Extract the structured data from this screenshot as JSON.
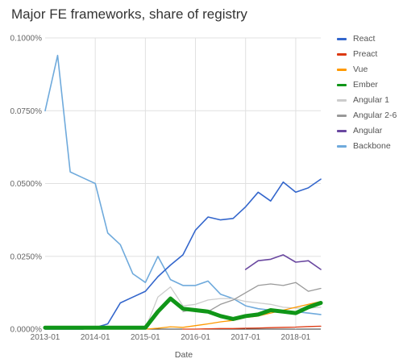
{
  "chart_data": {
    "type": "line",
    "title": "Major FE frameworks, share of registry",
    "xlabel": "Date",
    "ylabel": "",
    "x": [
      2013.0,
      2013.25,
      2013.5,
      2013.75,
      2014.0,
      2014.25,
      2014.5,
      2014.75,
      2015.0,
      2015.25,
      2015.5,
      2015.75,
      2016.0,
      2016.25,
      2016.5,
      2016.75,
      2017.0,
      2017.25,
      2017.5,
      2017.75,
      2018.0,
      2018.25,
      2018.5
    ],
    "xlim": [
      2013.0,
      2018.5
    ],
    "ylim": [
      0,
      0.1
    ],
    "y_tick_values": [
      0,
      0.025,
      0.05,
      0.075,
      0.1
    ],
    "y_tick_labels": [
      "0.0000%",
      "0.0250%",
      "0.0500%",
      "0.0750%",
      "0.1000%"
    ],
    "x_tick_values": [
      2013.0,
      2014.0,
      2015.0,
      2016.0,
      2017.0,
      2018.0
    ],
    "x_tick_labels": [
      "2013-01",
      "2014-01",
      "2015-01",
      "2016-01",
      "2017-01",
      "2018-01"
    ],
    "grid": true,
    "legend_position": "right",
    "series": [
      {
        "name": "React",
        "color": "#3366cc",
        "width": 1.6,
        "values": [
          0,
          0,
          0,
          0,
          0.0005,
          0.0018,
          0.009,
          0.011,
          0.013,
          0.018,
          0.022,
          0.0255,
          0.034,
          0.0385,
          0.0375,
          0.038,
          0.042,
          0.047,
          0.044,
          0.0505,
          0.047,
          0.0485,
          0.0515
        ]
      },
      {
        "name": "Preact",
        "color": "#dc3912",
        "width": 1.3,
        "values": [
          null,
          null,
          null,
          null,
          null,
          null,
          null,
          null,
          null,
          null,
          null,
          0,
          0,
          0.0001,
          0.0002,
          0.0002,
          0.0003,
          0.0004,
          0.0005,
          0.0006,
          0.0007,
          0.0009,
          0.001
        ]
      },
      {
        "name": "Vue",
        "color": "#ff9900",
        "width": 1.3,
        "values": [
          null,
          null,
          null,
          null,
          null,
          null,
          null,
          null,
          0,
          0.0003,
          0.0008,
          0.0006,
          0.0012,
          0.0018,
          0.0025,
          0.003,
          0.004,
          0.0045,
          0.0055,
          0.0065,
          0.0075,
          0.0085,
          0.0095
        ]
      },
      {
        "name": "Ember",
        "color": "#109618",
        "width": 5,
        "values": [
          0.0005,
          0.0005,
          0.0005,
          0.0005,
          0.0005,
          0.0005,
          0.0005,
          0.0005,
          0.0005,
          0.006,
          0.0105,
          0.007,
          0.0065,
          0.006,
          0.0045,
          0.0035,
          0.0045,
          0.005,
          0.0065,
          0.006,
          0.0055,
          0.0075,
          0.009
        ]
      },
      {
        "name": "Angular 1",
        "color": "#cccccc",
        "width": 1.3,
        "values": [
          0.0002,
          0.0002,
          0.0002,
          0.0002,
          0.0002,
          0.0002,
          0.0002,
          0.0002,
          0.0002,
          0.011,
          0.0145,
          0.008,
          0.0085,
          0.01,
          0.0105,
          0.0105,
          0.0095,
          0.009,
          0.0085,
          0.0075,
          0.0072,
          0.0072,
          0.0075
        ]
      },
      {
        "name": "Angular 2-6",
        "color": "#999999",
        "width": 1.3,
        "values": [
          null,
          null,
          null,
          null,
          null,
          null,
          null,
          null,
          null,
          null,
          null,
          0.006,
          0.007,
          0.006,
          0.0085,
          0.01,
          0.0125,
          0.015,
          0.0155,
          0.015,
          0.016,
          0.013,
          0.014
        ]
      },
      {
        "name": "Angular",
        "color": "#6a48a0",
        "width": 1.6,
        "values": [
          null,
          null,
          null,
          null,
          null,
          null,
          null,
          null,
          null,
          null,
          null,
          null,
          null,
          null,
          null,
          null,
          0.0205,
          0.0235,
          0.024,
          0.0255,
          0.023,
          0.0235,
          0.0205
        ]
      },
      {
        "name": "Backbone",
        "color": "#6faadc",
        "width": 1.6,
        "values": [
          0.075,
          0.094,
          0.054,
          0.052,
          0.05,
          0.033,
          0.029,
          0.019,
          0.016,
          0.025,
          0.017,
          0.015,
          0.015,
          0.0165,
          0.012,
          0.0105,
          0.008,
          0.007,
          0.0065,
          0.006,
          0.006,
          0.0055,
          0.005
        ]
      }
    ]
  }
}
